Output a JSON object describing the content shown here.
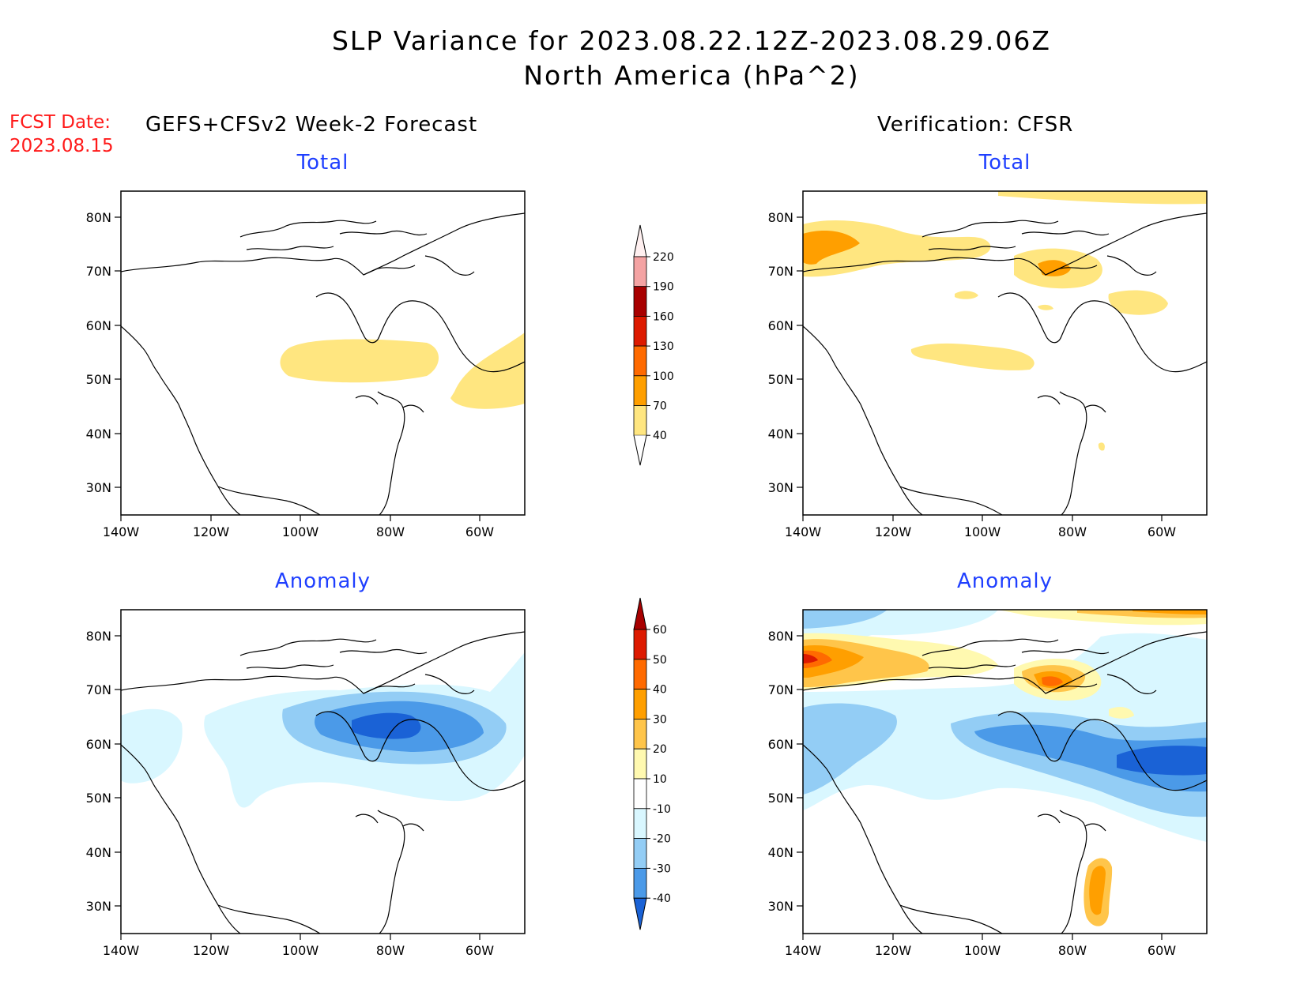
{
  "title": {
    "line1": "SLP Variance for 2023.08.22.12Z-2023.08.29.06Z",
    "line2": "North America (hPa^2)"
  },
  "fcst_date": {
    "label": "FCST Date:",
    "value": "2023.08.15"
  },
  "columns": {
    "forecast": "GEFS+CFSv2 Week-2 Forecast",
    "verification": "Verification: CFSR"
  },
  "panels": {
    "fc_total": "Total",
    "vf_total": "Total",
    "fc_anom": "Anomaly",
    "vf_anom": "Anomaly"
  },
  "axes": {
    "lat_labels": [
      "80N",
      "70N",
      "60N",
      "50N",
      "40N",
      "30N"
    ],
    "lon_labels": [
      "140W",
      "120W",
      "100W",
      "80W",
      "60W"
    ]
  },
  "colorbar_total": {
    "labels": [
      "220",
      "190",
      "160",
      "130",
      "100",
      "70",
      "40"
    ],
    "colors": [
      "#fff0f0",
      "#f4a3a3",
      "#a80000",
      "#dd1a00",
      "#ff6a00",
      "#ff9f00",
      "#ffe680"
    ]
  },
  "colorbar_anomaly": {
    "labels": [
      "60",
      "50",
      "40",
      "30",
      "20",
      "10",
      "-10",
      "-20",
      "-30",
      "-40"
    ],
    "colors": [
      "#a80000",
      "#dd1a00",
      "#ff6a00",
      "#ff9f00",
      "#ffc54a",
      "#fff9b0",
      "#ffffff",
      "#d9f7ff",
      "#93cdf5",
      "#4b9ae8",
      "#1a62d6"
    ]
  },
  "map_extent": {
    "lon": [
      -140,
      -50
    ],
    "lat": [
      25,
      85
    ]
  }
}
